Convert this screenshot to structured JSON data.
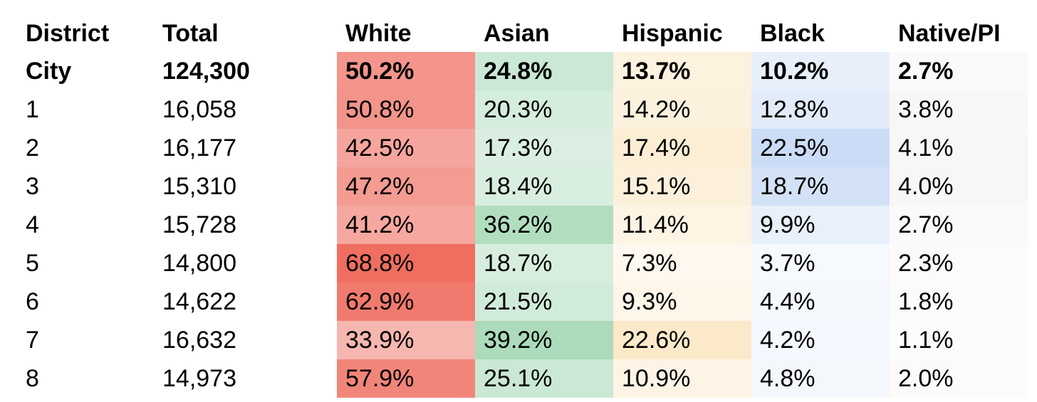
{
  "page": {
    "background": "#ffffff",
    "text_color": "#000000"
  },
  "table": {
    "columns": [
      {
        "key": "district",
        "label": "District"
      },
      {
        "key": "total",
        "label": "Total"
      },
      {
        "key": "white",
        "label": "White"
      },
      {
        "key": "asian",
        "label": "Asian"
      },
      {
        "key": "hispanic",
        "label": "Hispanic"
      },
      {
        "key": "black",
        "label": "Black"
      },
      {
        "key": "native-pi",
        "label": "Native/PI"
      }
    ],
    "column_base_colors": {
      "white": "#e82c18",
      "asian": "#2aa451",
      "hispanic": "#ed9e10",
      "black": "#1863db",
      "native-pi": "#671e1c"
    },
    "rows": [
      {
        "district": "City",
        "total": "124,300",
        "bold": true,
        "cells": [
          {
            "text": "50.2%",
            "bg": "#f3958b"
          },
          {
            "text": "24.8%",
            "bg": "#cae8d4"
          },
          {
            "text": "13.7%",
            "bg": "#fdf2de"
          },
          {
            "text": "10.2%",
            "bg": "#e7effb"
          },
          {
            "text": "2.7%",
            "bg": "#fbf9f9"
          }
        ]
      },
      {
        "district": "1",
        "total": "16,058",
        "bold": false,
        "cells": [
          {
            "text": "50.8%",
            "bg": "#f3948a"
          },
          {
            "text": "20.3%",
            "bg": "#d4eddc"
          },
          {
            "text": "14.2%",
            "bg": "#fcf1dd"
          },
          {
            "text": "12.8%",
            "bg": "#e1ebfa"
          },
          {
            "text": "3.8%",
            "bg": "#f9f7f6"
          }
        ]
      },
      {
        "district": "2",
        "total": "16,177",
        "bold": false,
        "cells": [
          {
            "text": "42.5%",
            "bg": "#f5a59d"
          },
          {
            "text": "17.3%",
            "bg": "#daefe1"
          },
          {
            "text": "17.4%",
            "bg": "#fceed5"
          },
          {
            "text": "22.5%",
            "bg": "#cbdcf7"
          },
          {
            "text": "4.1%",
            "bg": "#f9f6f6"
          }
        ]
      },
      {
        "district": "3",
        "total": "15,310",
        "bold": false,
        "cells": [
          {
            "text": "47.2%",
            "bg": "#f49b92"
          },
          {
            "text": "18.4%",
            "bg": "#d8eedf"
          },
          {
            "text": "15.1%",
            "bg": "#fcf0db"
          },
          {
            "text": "18.7%",
            "bg": "#d4e2f8"
          },
          {
            "text": "4.0%",
            "bg": "#f9f6f6"
          }
        ]
      },
      {
        "district": "4",
        "total": "15,728",
        "bold": false,
        "cells": [
          {
            "text": "41.2%",
            "bg": "#f6a8a0"
          },
          {
            "text": "36.2%",
            "bg": "#b2dec0"
          },
          {
            "text": "11.4%",
            "bg": "#fdf4e4"
          },
          {
            "text": "9.9%",
            "bg": "#e8f0fb"
          },
          {
            "text": "2.7%",
            "bg": "#fbf9f9"
          }
        ]
      },
      {
        "district": "5",
        "total": "14,800",
        "bold": false,
        "cells": [
          {
            "text": "68.8%",
            "bg": "#ef6e60"
          },
          {
            "text": "18.7%",
            "bg": "#d7eede"
          },
          {
            "text": "7.3%",
            "bg": "#fef8ee"
          },
          {
            "text": "3.7%",
            "bg": "#f6f9fe"
          },
          {
            "text": "2.3%",
            "bg": "#fcfafa"
          }
        ]
      },
      {
        "district": "6",
        "total": "14,622",
        "bold": false,
        "cells": [
          {
            "text": "62.9%",
            "bg": "#f17a6e"
          },
          {
            "text": "21.5%",
            "bg": "#d1ebda"
          },
          {
            "text": "9.3%",
            "bg": "#fdf6e9"
          },
          {
            "text": "4.4%",
            "bg": "#f5f8fd"
          },
          {
            "text": "1.8%",
            "bg": "#fcfbfb"
          }
        ]
      },
      {
        "district": "7",
        "total": "16,632",
        "bold": false,
        "cells": [
          {
            "text": "33.9%",
            "bg": "#f7b7b1"
          },
          {
            "text": "39.2%",
            "bg": "#abdbbb"
          },
          {
            "text": "22.6%",
            "bg": "#fbe9c9"
          },
          {
            "text": "4.2%",
            "bg": "#f5f8fe"
          },
          {
            "text": "1.1%",
            "bg": "#fdfcfc"
          }
        ]
      },
      {
        "district": "8",
        "total": "14,973",
        "bold": false,
        "cells": [
          {
            "text": "57.9%",
            "bg": "#f28579"
          },
          {
            "text": "25.1%",
            "bg": "#cae8d3"
          },
          {
            "text": "10.9%",
            "bg": "#fdf4e5"
          },
          {
            "text": "4.8%",
            "bg": "#f4f8fd"
          },
          {
            "text": "2.0%",
            "bg": "#fcfbfa"
          }
        ]
      }
    ]
  },
  "chart_data": {
    "type": "table",
    "title": "",
    "columns": [
      "District",
      "Total",
      "White",
      "Asian",
      "Hispanic",
      "Black",
      "Native/PI"
    ],
    "value_format": "percent",
    "heatmap": true,
    "rows": [
      {
        "district": "City",
        "total": 124300,
        "white": 50.2,
        "asian": 24.8,
        "hispanic": 13.7,
        "black": 10.2,
        "native_pi": 2.7
      },
      {
        "district": "1",
        "total": 16058,
        "white": 50.8,
        "asian": 20.3,
        "hispanic": 14.2,
        "black": 12.8,
        "native_pi": 3.8
      },
      {
        "district": "2",
        "total": 16177,
        "white": 42.5,
        "asian": 17.3,
        "hispanic": 17.4,
        "black": 22.5,
        "native_pi": 4.1
      },
      {
        "district": "3",
        "total": 15310,
        "white": 47.2,
        "asian": 18.4,
        "hispanic": 15.1,
        "black": 18.7,
        "native_pi": 4.0
      },
      {
        "district": "4",
        "total": 15728,
        "white": 41.2,
        "asian": 36.2,
        "hispanic": 11.4,
        "black": 9.9,
        "native_pi": 2.7
      },
      {
        "district": "5",
        "total": 14800,
        "white": 68.8,
        "asian": 18.7,
        "hispanic": 7.3,
        "black": 3.7,
        "native_pi": 2.3
      },
      {
        "district": "6",
        "total": 14622,
        "white": 62.9,
        "asian": 21.5,
        "hispanic": 9.3,
        "black": 4.4,
        "native_pi": 1.8
      },
      {
        "district": "7",
        "total": 16632,
        "white": 33.9,
        "asian": 39.2,
        "hispanic": 22.6,
        "black": 4.2,
        "native_pi": 1.1
      },
      {
        "district": "8",
        "total": 14973,
        "white": 57.9,
        "asian": 25.1,
        "hispanic": 10.9,
        "black": 4.8,
        "native_pi": 2.0
      }
    ]
  }
}
